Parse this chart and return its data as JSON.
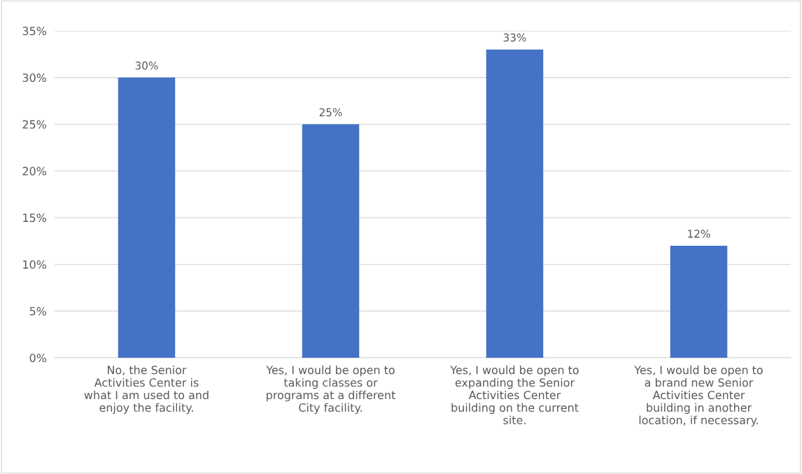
{
  "chart_data": {
    "type": "bar",
    "categories": [
      "No, the Senior Activities Center is what I am used to and enjoy the facility.",
      "Yes, I would be open to taking classes or programs at a different City facility.",
      "Yes, I would be open to expanding the Senior Activities Center building on the current site.",
      "Yes, I would be open to a brand new Senior Activities Center building in another location, if necessary."
    ],
    "values": [
      30,
      25,
      33,
      12
    ],
    "value_labels": [
      "30%",
      "25%",
      "33%",
      "12%"
    ],
    "color": "#4472c4",
    "ylim": [
      0,
      35
    ],
    "yticks": [
      {
        "value": 0,
        "label": "0%"
      },
      {
        "value": 5,
        "label": "5%"
      },
      {
        "value": 10,
        "label": "10%"
      },
      {
        "value": 15,
        "label": "15%"
      },
      {
        "value": 20,
        "label": "20%"
      },
      {
        "value": 25,
        "label": "25%"
      },
      {
        "value": 30,
        "label": "30%"
      },
      {
        "value": 35,
        "label": "35%"
      }
    ],
    "grid": "y"
  }
}
